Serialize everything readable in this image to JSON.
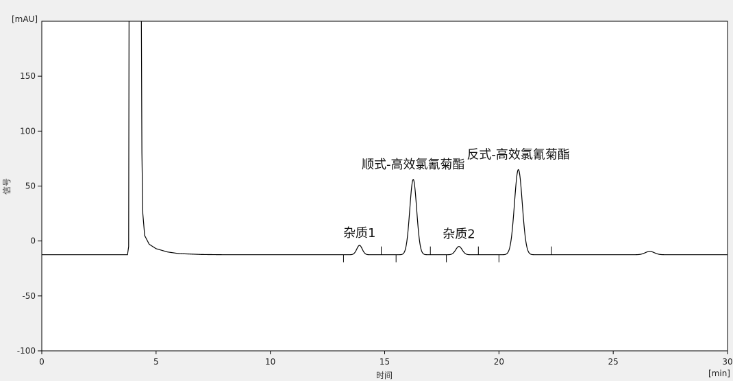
{
  "chart_data": {
    "type": "line",
    "title": "",
    "xlabel": "时间",
    "ylabel": "信号",
    "x_unit": "[min]",
    "y_unit": "[mAU]",
    "xlim": [
      0,
      30
    ],
    "ylim": [
      -100,
      200
    ],
    "xticks": [
      0,
      5,
      10,
      15,
      20,
      25,
      30
    ],
    "yticks": [
      -100,
      -50,
      0,
      50,
      100,
      150
    ],
    "grid": false,
    "baseline": -12.5,
    "solvent_front": [
      [
        0,
        -12.5
      ],
      [
        3.75,
        -12.5
      ],
      [
        3.8,
        -5
      ],
      [
        3.82,
        230
      ],
      [
        4.35,
        230
      ],
      [
        4.38,
        80
      ],
      [
        4.42,
        25
      ],
      [
        4.5,
        5
      ],
      [
        4.7,
        -3
      ],
      [
        5.0,
        -7
      ],
      [
        5.5,
        -10
      ],
      [
        6.0,
        -11.5
      ],
      [
        7.0,
        -12.3
      ],
      [
        8,
        -12.5
      ]
    ],
    "peaks": [
      {
        "label": "杂质1",
        "rt": 13.9,
        "apex": -4,
        "sigma": 0.12
      },
      {
        "label": "顺式-高效氯氰菊酯",
        "rt": 16.25,
        "apex": 56,
        "sigma": 0.15
      },
      {
        "label": "杂质2",
        "rt": 18.25,
        "apex": -5,
        "sigma": 0.14
      },
      {
        "label": "反式-高效氯氰菊酯",
        "rt": 20.85,
        "apex": 65,
        "sigma": 0.17
      },
      {
        "label": "",
        "rt": 26.6,
        "apex": -9.5,
        "sigma": 0.2
      }
    ],
    "integration_marks_down": [
      13.2,
      15.5,
      17.7,
      20.0
    ],
    "integration_marks_up": [
      14.85,
      17.0,
      19.1,
      22.3
    ],
    "line_color": "#000000"
  }
}
